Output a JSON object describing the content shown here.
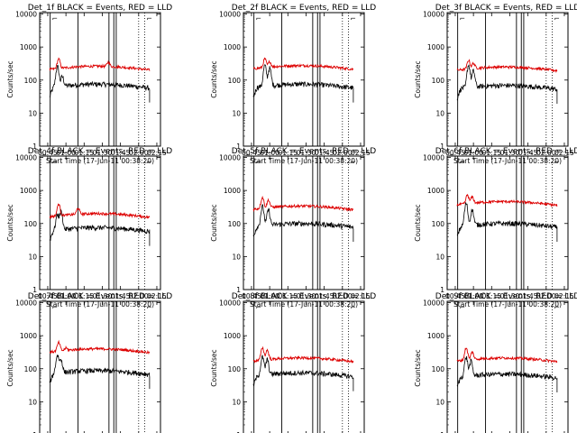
{
  "chart_data": {
    "type": "line",
    "layout": "3x3 grid of panels",
    "shared": {
      "xlabel": "Start Time (17-Jun-11 00:38:20)",
      "ylabel": "Counts/sec",
      "x_tick_labels": [
        "00:45",
        "01:00",
        "01:15",
        "01:30",
        "01:45",
        "02:00",
        "02:15"
      ],
      "xlim": [
        "00:38:20",
        "02:18:00"
      ],
      "y_scale": "log",
      "ylim": [
        1,
        11000
      ],
      "y_tick_labels": [
        "1",
        "10",
        "100",
        "1000",
        "10000"
      ],
      "series_colors": {
        "events": "#000000",
        "lld": "#dd0000"
      },
      "solid_vertical_lines": [
        "00:47:00",
        "01:10:00",
        "01:35:30",
        "01:39:30",
        "01:41:30"
      ],
      "dotted_vertical_lines": [
        "02:00:00",
        "02:05:00"
      ],
      "marker_symbols": [
        "⌐",
        "⌐"
      ]
    },
    "panels": [
      {
        "title": "Det_1f BLACK = Events, RED = LLD",
        "events_base": 60,
        "lld_base": 210,
        "event_peaks": [
          {
            "t": "00:53:00",
            "v": 250
          },
          {
            "t": "00:57:00",
            "v": 120
          }
        ],
        "lld_peaks": [
          {
            "t": "00:54:00",
            "v": 420
          },
          {
            "t": "01:35:00",
            "v": 300
          }
        ]
      },
      {
        "title": "Det_2f BLACK = Events, RED = LLD",
        "events_base": 60,
        "lld_base": 220,
        "event_peaks": [
          {
            "t": "00:56:00",
            "v": 270
          },
          {
            "t": "01:00:00",
            "v": 220
          }
        ],
        "lld_peaks": [
          {
            "t": "00:56:00",
            "v": 420
          },
          {
            "t": "01:00:00",
            "v": 330
          }
        ]
      },
      {
        "title": "Det_3f BLACK = Events, RED = LLD",
        "events_base": 55,
        "lld_base": 200,
        "event_peaks": [
          {
            "t": "00:56:00",
            "v": 280
          },
          {
            "t": "01:00:00",
            "v": 180
          }
        ],
        "lld_peaks": [
          {
            "t": "00:56:00",
            "v": 380
          },
          {
            "t": "01:00:00",
            "v": 300
          }
        ]
      },
      {
        "title": "Det_4f BLACK = Events, RED = LLD",
        "events_base": 60,
        "lld_base": 160,
        "event_peaks": [
          {
            "t": "00:53:00",
            "v": 180
          },
          {
            "t": "00:56:00",
            "v": 220
          }
        ],
        "lld_peaks": [
          {
            "t": "00:54:00",
            "v": 380
          },
          {
            "t": "01:10:00",
            "v": 260
          }
        ]
      },
      {
        "title": "Det_5f BLACK = Events, RED = LLD",
        "events_base": 80,
        "lld_base": 270,
        "event_peaks": [
          {
            "t": "00:54:00",
            "v": 320
          },
          {
            "t": "00:59:00",
            "v": 250
          }
        ],
        "lld_peaks": [
          {
            "t": "00:54:00",
            "v": 600
          },
          {
            "t": "00:59:00",
            "v": 480
          }
        ]
      },
      {
        "title": "Det_6f BLACK = Events, RED = LLD",
        "events_base": 80,
        "lld_base": 370,
        "event_peaks": [
          {
            "t": "00:54:00",
            "v": 400
          },
          {
            "t": "00:59:00",
            "v": 250
          }
        ],
        "lld_peaks": [
          {
            "t": "00:55:00",
            "v": 700
          },
          {
            "t": "00:59:00",
            "v": 600
          }
        ]
      },
      {
        "title": "Det_7f BLACK = Events, RED = LLD",
        "events_base": 70,
        "lld_base": 320,
        "event_peaks": [
          {
            "t": "00:53:00",
            "v": 250
          },
          {
            "t": "00:56:00",
            "v": 180
          }
        ],
        "lld_peaks": [
          {
            "t": "00:54:00",
            "v": 600
          },
          {
            "t": "01:00:00",
            "v": 380
          }
        ]
      },
      {
        "title": "Det_8f BLACK = Events, RED = LLD",
        "events_base": 60,
        "lld_base": 170,
        "event_peaks": [
          {
            "t": "00:54:00",
            "v": 220
          },
          {
            "t": "00:58:00",
            "v": 180
          }
        ],
        "lld_peaks": [
          {
            "t": "00:54:00",
            "v": 420
          },
          {
            "t": "00:58:00",
            "v": 350
          }
        ]
      },
      {
        "title": "Det_9f BLACK = Events, RED = LLD",
        "events_base": 55,
        "lld_base": 170,
        "event_peaks": [
          {
            "t": "00:54:00",
            "v": 220
          },
          {
            "t": "00:58:00",
            "v": 160
          }
        ],
        "lld_peaks": [
          {
            "t": "00:54:00",
            "v": 420
          },
          {
            "t": "00:59:00",
            "v": 300
          }
        ]
      }
    ]
  }
}
